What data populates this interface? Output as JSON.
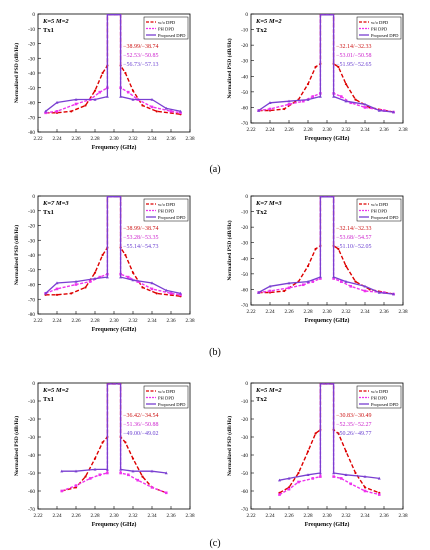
{
  "colors": {
    "wo": "#dd0000",
    "ph": "#ee33ee",
    "proposed": "#7a3fd1",
    "ann_wo": "#cc1111",
    "ann_ph": "#cc22cc",
    "ann_prop": "#6a3fd1"
  },
  "chart_data": [
    {
      "type": "line",
      "panel": "(a)",
      "param": "K=5 M=2",
      "tx": "Tx1",
      "xlabel": "Frequency (GHz)",
      "ylabel": "Normalized PSD (dB/Hz)",
      "xlim": [
        2.22,
        2.38
      ],
      "ylim": [
        -80,
        0
      ],
      "xticks": [
        "2.22",
        "2.24",
        "2.26",
        "2.28",
        "2.30",
        "2.32",
        "2.34",
        "2.36",
        "2.38"
      ],
      "yticks": [
        "0",
        "-10",
        "-20",
        "-30",
        "-40",
        "-50",
        "-60",
        "-70",
        "-80"
      ],
      "legend": [
        "w/o DPD",
        "PH DPD",
        "Proposed  DPD"
      ],
      "annotations": [
        "−38.99/−38.74",
        "−52.53/−50.85",
        "−56.73/−57.13"
      ],
      "inband_floor": -0.5,
      "profiles": {
        "wo": [
          [
            2.228,
            -67
          ],
          [
            2.24,
            -67
          ],
          [
            2.255,
            -66
          ],
          [
            2.27,
            -62
          ],
          [
            2.28,
            -52
          ],
          [
            2.288,
            -40
          ],
          [
            2.293,
            -35
          ],
          [
            2.307,
            -35
          ],
          [
            2.312,
            -40
          ],
          [
            2.32,
            -52
          ],
          [
            2.33,
            -62
          ],
          [
            2.345,
            -66
          ],
          [
            2.37,
            -68
          ]
        ],
        "ph": [
          [
            2.228,
            -67
          ],
          [
            2.24,
            -66
          ],
          [
            2.26,
            -61
          ],
          [
            2.275,
            -58
          ],
          [
            2.285,
            -53
          ],
          [
            2.293,
            -50
          ],
          [
            2.307,
            -50
          ],
          [
            2.315,
            -53
          ],
          [
            2.325,
            -58
          ],
          [
            2.34,
            -63
          ],
          [
            2.36,
            -66
          ],
          [
            2.37,
            -67
          ]
        ],
        "proposed": [
          [
            2.228,
            -66
          ],
          [
            2.24,
            -60
          ],
          [
            2.26,
            -58
          ],
          [
            2.28,
            -58
          ],
          [
            2.293,
            -56
          ],
          [
            2.307,
            -56
          ],
          [
            2.32,
            -58
          ],
          [
            2.34,
            -58
          ],
          [
            2.355,
            -64
          ],
          [
            2.37,
            -66
          ]
        ]
      }
    },
    {
      "type": "line",
      "panel": "(a)",
      "param": "K=5 M=2",
      "tx": "Tx2",
      "xlabel": "Frequency (GHz)",
      "ylabel": "Normalized PSD (dB/Hz)",
      "xlim": [
        2.22,
        2.38
      ],
      "ylim": [
        -70,
        0
      ],
      "xticks": [
        "2.22",
        "2.24",
        "2.26",
        "2.28",
        "2.30",
        "2.32",
        "2.34",
        "2.36",
        "2.38"
      ],
      "yticks": [
        "0",
        "-10",
        "-20",
        "-30",
        "-40",
        "-50",
        "-60",
        "-70"
      ],
      "legend": [
        "w/o DPD",
        "PH DPD",
        "Proposed  DPD"
      ],
      "annotations": [
        "−32.14/−32.33",
        "−53.01/−50.58",
        "−51.95/−52.65"
      ],
      "inband_floor": -0.5,
      "profiles": {
        "wo": [
          [
            2.228,
            -62
          ],
          [
            2.24,
            -62
          ],
          [
            2.255,
            -61
          ],
          [
            2.27,
            -55
          ],
          [
            2.28,
            -45
          ],
          [
            2.288,
            -34
          ],
          [
            2.293,
            -32
          ],
          [
            2.307,
            -32
          ],
          [
            2.312,
            -34
          ],
          [
            2.32,
            -45
          ],
          [
            2.33,
            -55
          ],
          [
            2.345,
            -60
          ],
          [
            2.37,
            -63
          ]
        ],
        "ph": [
          [
            2.228,
            -62
          ],
          [
            2.24,
            -61
          ],
          [
            2.26,
            -58
          ],
          [
            2.275,
            -56
          ],
          [
            2.285,
            -53
          ],
          [
            2.293,
            -51
          ],
          [
            2.307,
            -51
          ],
          [
            2.315,
            -53
          ],
          [
            2.325,
            -57
          ],
          [
            2.34,
            -60
          ],
          [
            2.36,
            -62
          ],
          [
            2.37,
            -63
          ]
        ],
        "proposed": [
          [
            2.228,
            -62
          ],
          [
            2.24,
            -57
          ],
          [
            2.26,
            -56
          ],
          [
            2.28,
            -55
          ],
          [
            2.293,
            -53
          ],
          [
            2.307,
            -53
          ],
          [
            2.32,
            -56
          ],
          [
            2.34,
            -58
          ],
          [
            2.355,
            -62
          ],
          [
            2.37,
            -63
          ]
        ]
      }
    },
    {
      "type": "line",
      "panel": "(b)",
      "param": "K=7 M=3",
      "tx": "Tx1",
      "xlabel": "Frequency (GHz)",
      "ylabel": "Normalized PSD (dB/Hz)",
      "xlim": [
        2.22,
        2.38
      ],
      "ylim": [
        -80,
        0
      ],
      "xticks": [
        "2.22",
        "2.24",
        "2.26",
        "2.28",
        "2.30",
        "2.32",
        "2.34",
        "2.36",
        "2.38"
      ],
      "yticks": [
        "0",
        "-10",
        "-20",
        "-30",
        "-40",
        "-50",
        "-60",
        "-70",
        "-80"
      ],
      "legend": [
        "w/o DPD",
        "PH DPD",
        "Proposed  DPD"
      ],
      "annotations": [
        "−38.99/−38.74",
        "−53.28/−53.35",
        "−55.14/−54.73"
      ],
      "inband_floor": -0.5,
      "profiles": {
        "wo": [
          [
            2.228,
            -67
          ],
          [
            2.24,
            -67
          ],
          [
            2.255,
            -66
          ],
          [
            2.27,
            -62
          ],
          [
            2.28,
            -52
          ],
          [
            2.288,
            -40
          ],
          [
            2.293,
            -35
          ],
          [
            2.307,
            -35
          ],
          [
            2.312,
            -40
          ],
          [
            2.32,
            -52
          ],
          [
            2.33,
            -62
          ],
          [
            2.345,
            -66
          ],
          [
            2.37,
            -68
          ]
        ],
        "ph": [
          [
            2.228,
            -66
          ],
          [
            2.24,
            -63
          ],
          [
            2.26,
            -60
          ],
          [
            2.275,
            -58
          ],
          [
            2.285,
            -55
          ],
          [
            2.293,
            -53
          ],
          [
            2.307,
            -53
          ],
          [
            2.315,
            -55
          ],
          [
            2.325,
            -58
          ],
          [
            2.34,
            -63
          ],
          [
            2.36,
            -66
          ],
          [
            2.37,
            -67
          ]
        ],
        "proposed": [
          [
            2.228,
            -66
          ],
          [
            2.24,
            -59
          ],
          [
            2.26,
            -58
          ],
          [
            2.28,
            -56
          ],
          [
            2.293,
            -55
          ],
          [
            2.307,
            -55
          ],
          [
            2.32,
            -57
          ],
          [
            2.34,
            -59
          ],
          [
            2.355,
            -64
          ],
          [
            2.37,
            -66
          ]
        ]
      }
    },
    {
      "type": "line",
      "panel": "(b)",
      "param": "K=7 M=3",
      "tx": "Tx2",
      "xlabel": "Frequency (GHz)",
      "ylabel": "Normalized PSD (dB/Hz)",
      "xlim": [
        2.22,
        2.38
      ],
      "ylim": [
        -70,
        0
      ],
      "xticks": [
        "2.22",
        "2.24",
        "2.26",
        "2.28",
        "2.30",
        "2.32",
        "2.34",
        "2.36",
        "2.38"
      ],
      "yticks": [
        "0",
        "-10",
        "-20",
        "-30",
        "-40",
        "-50",
        "-60",
        "-70"
      ],
      "legend": [
        "w/o DPD",
        "PH DPD",
        "Proposed  DPD"
      ],
      "annotations": [
        "−32.14/−32.33",
        "−53.68/−54.57",
        "−51.10/−52.05"
      ],
      "inband_floor": -0.5,
      "profiles": {
        "wo": [
          [
            2.228,
            -62
          ],
          [
            2.24,
            -62
          ],
          [
            2.255,
            -61
          ],
          [
            2.27,
            -55
          ],
          [
            2.28,
            -45
          ],
          [
            2.288,
            -34
          ],
          [
            2.293,
            -32
          ],
          [
            2.307,
            -32
          ],
          [
            2.312,
            -34
          ],
          [
            2.32,
            -45
          ],
          [
            2.33,
            -55
          ],
          [
            2.345,
            -60
          ],
          [
            2.37,
            -63
          ]
        ],
        "ph": [
          [
            2.228,
            -62
          ],
          [
            2.24,
            -61
          ],
          [
            2.26,
            -59
          ],
          [
            2.275,
            -57
          ],
          [
            2.285,
            -55
          ],
          [
            2.293,
            -53
          ],
          [
            2.307,
            -53
          ],
          [
            2.315,
            -55
          ],
          [
            2.325,
            -58
          ],
          [
            2.34,
            -61
          ],
          [
            2.36,
            -62
          ],
          [
            2.37,
            -63
          ]
        ],
        "proposed": [
          [
            2.228,
            -62
          ],
          [
            2.24,
            -58
          ],
          [
            2.26,
            -56
          ],
          [
            2.28,
            -55
          ],
          [
            2.293,
            -52
          ],
          [
            2.307,
            -52
          ],
          [
            2.32,
            -55
          ],
          [
            2.34,
            -58
          ],
          [
            2.355,
            -62
          ],
          [
            2.37,
            -63
          ]
        ]
      }
    },
    {
      "type": "line",
      "panel": "(c)",
      "param": "K=5 M=2",
      "tx": "Tx1",
      "xlabel": "Frequency (GHz)",
      "ylabel": "Normalized PSD (dB/Hz)",
      "xlim": [
        2.22,
        2.38
      ],
      "ylim": [
        -70,
        0
      ],
      "xticks": [
        "2.22",
        "2.24",
        "2.26",
        "2.28",
        "2.30",
        "2.32",
        "2.34",
        "2.36",
        "2.38"
      ],
      "yticks": [
        "0",
        "-10",
        "-20",
        "-30",
        "-40",
        "-50",
        "-60",
        "-70"
      ],
      "legend": [
        "w/o DPD",
        "PH DPD",
        "Proposed  DPD"
      ],
      "annotations": [
        "−36.42/−34.54",
        "−51.36/−50.88",
        "−49.00/−49.02"
      ],
      "inband_floor": -0.5,
      "profiles": {
        "wo": [
          [
            2.245,
            -60
          ],
          [
            2.26,
            -58
          ],
          [
            2.27,
            -52
          ],
          [
            2.28,
            -42
          ],
          [
            2.288,
            -33
          ],
          [
            2.293,
            -30
          ],
          [
            2.307,
            -30
          ],
          [
            2.312,
            -33
          ],
          [
            2.32,
            -42
          ],
          [
            2.33,
            -52
          ],
          [
            2.34,
            -58
          ],
          [
            2.355,
            -61
          ]
        ],
        "ph": [
          [
            2.245,
            -60
          ],
          [
            2.26,
            -57
          ],
          [
            2.275,
            -53
          ],
          [
            2.285,
            -51
          ],
          [
            2.293,
            -50
          ],
          [
            2.307,
            -50
          ],
          [
            2.315,
            -51
          ],
          [
            2.325,
            -54
          ],
          [
            2.34,
            -58
          ],
          [
            2.355,
            -61
          ]
        ],
        "proposed": [
          [
            2.245,
            -49
          ],
          [
            2.26,
            -49
          ],
          [
            2.28,
            -48
          ],
          [
            2.293,
            -48
          ],
          [
            2.307,
            -48
          ],
          [
            2.32,
            -49
          ],
          [
            2.34,
            -49
          ],
          [
            2.355,
            -50
          ]
        ]
      }
    },
    {
      "type": "line",
      "panel": "(c)",
      "param": "K=5 M=2",
      "tx": "Tx2",
      "xlabel": "Frequency (GHz)",
      "ylabel": "Normalized PSD (dB/Hz)",
      "xlim": [
        2.22,
        2.38
      ],
      "ylim": [
        -70,
        0
      ],
      "xticks": [
        "2.22",
        "2.24",
        "2.26",
        "2.28",
        "2.30",
        "2.32",
        "2.34",
        "2.36",
        "2.38"
      ],
      "yticks": [
        "0",
        "-10",
        "-20",
        "-30",
        "-40",
        "-50",
        "-60",
        "-70"
      ],
      "legend": [
        "w/o DPD",
        "PH DPD",
        "Proposed  DPD"
      ],
      "annotations": [
        "−30.83/−30.49",
        "−52.35/−52.27",
        "−50.26/−49.77"
      ],
      "inband_floor": -0.5,
      "profiles": {
        "wo": [
          [
            2.25,
            -61
          ],
          [
            2.26,
            -58
          ],
          [
            2.27,
            -50
          ],
          [
            2.28,
            -38
          ],
          [
            2.288,
            -28
          ],
          [
            2.293,
            -26
          ],
          [
            2.307,
            -26
          ],
          [
            2.312,
            -28
          ],
          [
            2.32,
            -38
          ],
          [
            2.33,
            -50
          ],
          [
            2.34,
            -58
          ],
          [
            2.355,
            -61
          ]
        ],
        "ph": [
          [
            2.25,
            -62
          ],
          [
            2.26,
            -59
          ],
          [
            2.27,
            -55
          ],
          [
            2.285,
            -53
          ],
          [
            2.293,
            -52
          ],
          [
            2.307,
            -52
          ],
          [
            2.315,
            -53
          ],
          [
            2.325,
            -56
          ],
          [
            2.34,
            -60
          ],
          [
            2.355,
            -62
          ]
        ],
        "proposed": [
          [
            2.25,
            -54
          ],
          [
            2.26,
            -53
          ],
          [
            2.28,
            -51
          ],
          [
            2.293,
            -50
          ],
          [
            2.307,
            -50
          ],
          [
            2.32,
            -51
          ],
          [
            2.34,
            -52
          ],
          [
            2.355,
            -53
          ]
        ]
      }
    }
  ],
  "captions": [
    "(a)",
    "(b)",
    "(c)"
  ]
}
